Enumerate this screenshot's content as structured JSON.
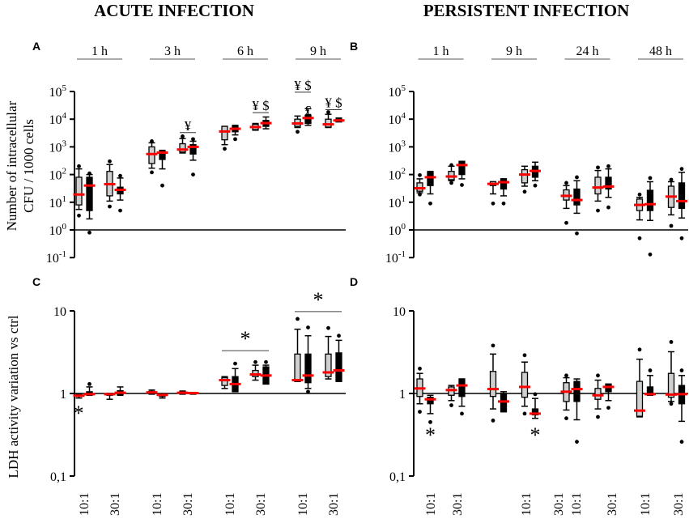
{
  "titles": {
    "acute": "ACUTE INFECTION",
    "persistent": "PERSISTENT INFECTION"
  },
  "colors": {
    "grey_box": "#cfcfcf",
    "black_box": "#000000",
    "median": "#ff0000"
  },
  "chart_data": [
    {
      "panel": "A",
      "type": "box",
      "scale": "log",
      "ylim": [
        0.1,
        100000
      ],
      "ylabel": [
        "Number of intracellular",
        "CFU / 1000 cells"
      ],
      "yticks": [
        {
          "v": 100000,
          "base": "10",
          "exp": "5"
        },
        {
          "v": 10000,
          "base": "10",
          "exp": "4"
        },
        {
          "v": 1000,
          "base": "10",
          "exp": "3"
        },
        {
          "v": 100,
          "base": "10",
          "exp": "2"
        },
        {
          "v": 10,
          "base": "10",
          "exp": "1"
        },
        {
          "v": 1,
          "base": "10",
          "exp": "0"
        },
        {
          "v": 0.1,
          "base": "10",
          "exp": "-1"
        }
      ],
      "refline": 1,
      "time_groups": [
        "1 h",
        "3 h",
        "6 h",
        "9 h"
      ],
      "ratios": [
        "10:1",
        "30:1"
      ],
      "series": [
        "grey",
        "black"
      ],
      "box_format": "[whisker_low, q1, median, q3, whisker_high, outliers]",
      "boxes": [
        [
          [
            5.5,
            8,
            19,
            80,
            160,
            [
              3.3,
              200
            ]
          ],
          [
            2.5,
            5,
            40,
            80,
            100,
            [
              0.8,
              110
            ]
          ]
        ],
        [
          [
            11,
            17,
            45,
            130,
            230,
            [
              7,
              300
            ]
          ],
          [
            12,
            20,
            28,
            35,
            75,
            [
              5,
              90
            ]
          ]
        ],
        [
          [
            170,
            250,
            550,
            1000,
            1400,
            [
              120,
              1600
            ]
          ],
          [
            160,
            350,
            620,
            700,
            750,
            [
              40
            ]
          ]
        ],
        [
          [
            600,
            650,
            800,
            1300,
            2000,
            [
              2400
            ]
          ],
          [
            330,
            550,
            1000,
            1200,
            1600,
            [
              100,
              1900
            ]
          ]
        ],
        [
          [
            1200,
            1800,
            3600,
            5500,
            5500,
            [
              850
            ]
          ],
          [
            2700,
            3500,
            4500,
            5500,
            6000,
            [
              1900
            ]
          ]
        ],
        [
          [
            4000,
            4200,
            5200,
            6500,
            7000,
            []
          ],
          [
            4500,
            5500,
            7200,
            9000,
            12000,
            []
          ]
        ],
        [
          [
            5000,
            5500,
            7000,
            10000,
            13000,
            [
              3500
            ]
          ],
          [
            6000,
            7000,
            11000,
            14000,
            24000,
            []
          ]
        ],
        [
          [
            5000,
            5200,
            6500,
            10000,
            15000,
            [
              18000
            ]
          ],
          [
            8000,
            8000,
            9000,
            10000,
            11000,
            []
          ]
        ]
      ],
      "annotations": [
        {
          "text": "¥",
          "box_index": 3,
          "side": "pair",
          "at": 4000
        },
        {
          "text": "¥ $",
          "box_index": 5,
          "side": "pair",
          "at": 21000
        },
        {
          "text": "¥ $",
          "box_index": 6,
          "side": "pair",
          "at": 63000
        },
        {
          "text": "£",
          "box_index": 6,
          "side": "black",
          "at": 30000
        },
        {
          "text": "¥ $",
          "box_index": 7,
          "side": "pair",
          "at": 27000
        }
      ]
    },
    {
      "panel": "B",
      "type": "box",
      "scale": "log",
      "ylim": [
        0.1,
        100000
      ],
      "yticks": [
        {
          "v": 100000,
          "base": "10",
          "exp": "5"
        },
        {
          "v": 10000,
          "base": "10",
          "exp": "4"
        },
        {
          "v": 1000,
          "base": "10",
          "exp": "3"
        },
        {
          "v": 100,
          "base": "10",
          "exp": "2"
        },
        {
          "v": 10,
          "base": "10",
          "exp": "1"
        },
        {
          "v": 1,
          "base": "10",
          "exp": "0"
        },
        {
          "v": 0.1,
          "base": "10",
          "exp": "-1"
        }
      ],
      "refline": 1,
      "time_groups": [
        "1 h",
        "9 h",
        "24 h",
        "48 h"
      ],
      "ratios": [
        "10:1",
        "30:1"
      ],
      "series": [
        "grey",
        "black"
      ],
      "boxes": [
        [
          [
            22,
            25,
            32,
            50,
            70,
            [
              19,
              95
            ]
          ],
          [
            20,
            40,
            80,
            120,
            130,
            [
              9
            ]
          ]
        ],
        [
          [
            60,
            65,
            85,
            130,
            200,
            [
              50,
              220
            ]
          ],
          [
            70,
            100,
            220,
            300,
            300,
            [
              42
            ]
          ]
        ],
        [
          [
            20,
            40,
            46,
            55,
            55,
            [
              9
            ]
          ],
          [
            17,
            30,
            53,
            70,
            70,
            [
              9
            ]
          ]
        ],
        [
          [
            38,
            50,
            100,
            150,
            200,
            [
              24
            ]
          ],
          [
            60,
            80,
            135,
            200,
            280,
            [
              40
            ]
          ]
        ],
        [
          [
            6,
            12,
            17,
            28,
            40,
            [
              1.8,
              50
            ]
          ],
          [
            4,
            8,
            12,
            30,
            60,
            [
              0.75,
              80
            ]
          ]
        ],
        [
          [
            11,
            20,
            34,
            80,
            140,
            [
              5,
              180
            ]
          ],
          [
            15,
            30,
            37,
            80,
            160,
            [
              6.5,
              200
            ]
          ]
        ],
        [
          [
            2.3,
            5,
            8,
            13,
            15,
            [
              0.5,
              19
            ]
          ],
          [
            2.2,
            5,
            8.5,
            27,
            55,
            [
              0.13,
              75
            ]
          ]
        ],
        [
          [
            3.5,
            6.5,
            16,
            38,
            55,
            [
              1.4,
              65
            ]
          ],
          [
            2.7,
            6,
            11,
            50,
            120,
            [
              0.5,
              160
            ]
          ]
        ]
      ],
      "annotations": []
    },
    {
      "panel": "C",
      "type": "box",
      "scale": "log",
      "ylim": [
        0.1,
        10
      ],
      "ylabel": [
        "LDH activity variation vs ctrl"
      ],
      "yticks": [
        {
          "v": 10,
          "base": "10",
          "exp": ""
        },
        {
          "v": 1,
          "base": "1",
          "exp": ""
        },
        {
          "v": 0.1,
          "base": "0,1",
          "exp": ""
        }
      ],
      "refline": 1,
      "xlabels": [
        "10:1",
        "30:1",
        "10:1",
        "30:1",
        "10:1",
        "30:1",
        "10:1",
        "30:1"
      ],
      "series": [
        "grey",
        "black"
      ],
      "boxes": [
        [
          [
            0.88,
            0.92,
            0.94,
            0.96,
            0.97,
            []
          ],
          [
            0.95,
            0.97,
            0.98,
            1.05,
            1.2,
            [
              1.3
            ]
          ]
        ],
        [
          [
            0.85,
            0.95,
            0.98,
            1.0,
            1.0,
            []
          ],
          [
            0.95,
            0.97,
            1.02,
            1.08,
            1.2,
            []
          ]
        ],
        [
          [
            0.98,
            1.0,
            1.03,
            1.06,
            1.1,
            []
          ],
          [
            0.88,
            0.92,
            0.96,
            0.98,
            0.98,
            []
          ]
        ],
        [
          [
            0.98,
            1.0,
            1.02,
            1.05,
            1.07,
            []
          ],
          [
            0.98,
            0.99,
            1.01,
            1.02,
            1.03,
            []
          ]
        ],
        [
          [
            1.15,
            1.25,
            1.45,
            1.55,
            1.6,
            []
          ],
          [
            1.05,
            1.05,
            1.3,
            1.6,
            2.0,
            [
              2.3
            ]
          ]
        ],
        [
          [
            1.45,
            1.6,
            1.7,
            1.9,
            2.2,
            [
              2.4
            ]
          ],
          [
            1.3,
            1.3,
            1.65,
            2.1,
            2.2,
            [
              2.4
            ]
          ]
        ],
        [
          [
            1.4,
            1.4,
            1.45,
            3.0,
            6.0,
            [
              8
            ]
          ],
          [
            1.15,
            1.35,
            1.65,
            3.0,
            5.0,
            [
              1.05,
              6.3
            ]
          ]
        ],
        [
          [
            1.5,
            1.6,
            1.8,
            3.0,
            4.9,
            [
              6.2
            ]
          ],
          [
            1.4,
            1.4,
            1.9,
            3.1,
            4.4,
            [
              5
            ]
          ]
        ]
      ],
      "significance": [
        {
          "text": "*",
          "from_group": 4,
          "to_group": 5,
          "at": 3.3
        },
        {
          "text": "*",
          "from_group": 6,
          "to_group": 7,
          "at": 9.8
        },
        {
          "text": "*",
          "below_group": 0,
          "at": 0.62
        }
      ]
    },
    {
      "panel": "D",
      "type": "box",
      "scale": "log",
      "ylim": [
        0.1,
        10
      ],
      "yticks": [
        {
          "v": 10,
          "base": "10",
          "exp": ""
        },
        {
          "v": 1,
          "base": "1",
          "exp": ""
        },
        {
          "v": 0.1,
          "base": "0,1",
          "exp": ""
        }
      ],
      "refline": 1,
      "xlabels": [
        "10:1",
        "30:1",
        "10:1",
        "30:1",
        "10:1",
        "30:1",
        "10:1",
        "30:1"
      ],
      "series": [
        "grey",
        "black"
      ],
      "boxes": [
        [
          [
            0.75,
            0.92,
            1.15,
            1.5,
            1.75,
            [
              0.6,
              2
            ]
          ],
          [
            0.57,
            0.75,
            0.85,
            0.9,
            0.95,
            [
              0.45
            ]
          ]
        ],
        [
          [
            0.82,
            0.95,
            1.1,
            1.2,
            1.25,
            [
              0.72
            ]
          ],
          [
            0.7,
            0.92,
            1.25,
            1.5,
            1.5,
            [
              0.57
            ]
          ]
        ],
        [
          [
            0.65,
            0.92,
            1.13,
            1.85,
            3.0,
            [
              0.47,
              3.8
            ]
          ],
          [
            0.6,
            0.6,
            0.8,
            1.0,
            1.05,
            []
          ]
        ],
        [
          [
            0.7,
            0.9,
            1.2,
            1.8,
            2.4,
            [
              0.57,
              2.9
            ]
          ],
          [
            0.5,
            0.55,
            0.57,
            0.65,
            0.87,
            [
              0.98
            ]
          ]
        ],
        [
          [
            0.63,
            0.8,
            1.05,
            1.35,
            1.55,
            [
              0.5,
              1.65
            ]
          ],
          [
            0.48,
            0.8,
            1.13,
            1.4,
            1.5,
            [
              0.26
            ]
          ]
        ],
        [
          [
            0.65,
            0.85,
            0.95,
            1.15,
            1.45,
            [
              0.52,
              1.65
            ]
          ],
          [
            0.82,
            1.05,
            1.2,
            1.3,
            1.3,
            [
              0.67
            ]
          ]
        ],
        [
          [
            0.52,
            0.53,
            0.62,
            1.4,
            2.6,
            [
              3.4
            ]
          ],
          [
            0.95,
            0.97,
            0.98,
            1.2,
            1.65,
            [
              1.9
            ]
          ]
        ],
        [
          [
            0.8,
            0.9,
            0.97,
            1.75,
            3.2,
            [
              0.75,
              4.2
            ]
          ],
          [
            0.46,
            0.75,
            0.98,
            1.25,
            1.65,
            [
              0.26,
              1.9
            ]
          ]
        ]
      ],
      "significance": [
        {
          "text": "*",
          "below_group": 0,
          "series": 1,
          "at": 0.34
        },
        {
          "text": "*",
          "below_group": 3,
          "series": 1,
          "at": 0.34
        }
      ]
    }
  ]
}
